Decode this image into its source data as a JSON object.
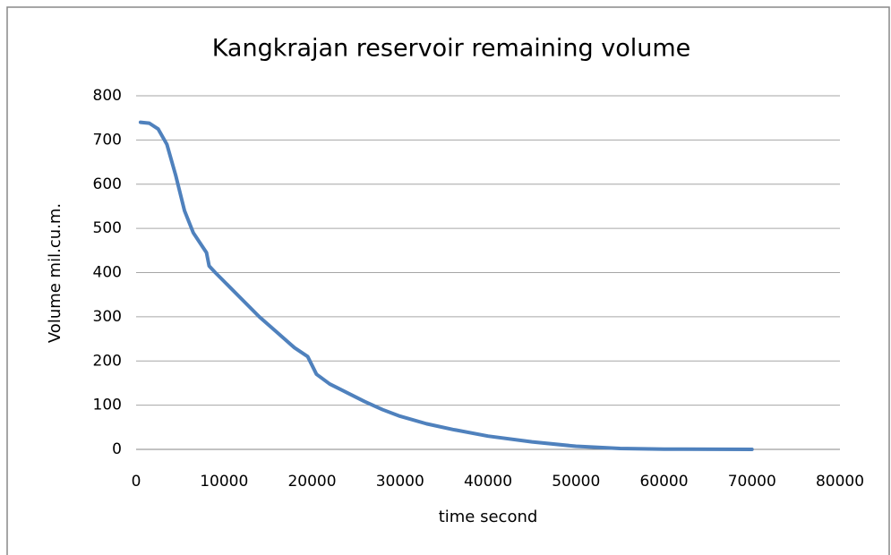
{
  "chart_data": {
    "type": "line",
    "title": "Kangkrajan reservoir remaining volume",
    "x_label": "time second",
    "y_label": "Volume mil.cu.m.",
    "x": [
      500,
      1500,
      2500,
      3500,
      4500,
      5500,
      6500,
      7500,
      8000,
      8300,
      9000,
      10000,
      12000,
      14000,
      16000,
      18000,
      19500,
      20500,
      22000,
      24000,
      26000,
      28000,
      30000,
      33000,
      36000,
      40000,
      45000,
      50000,
      55000,
      60000,
      70000
    ],
    "series": [
      {
        "name": "Volume",
        "color": "#4f81bd",
        "values": [
          740,
          738,
          725,
          690,
          620,
          540,
          490,
          460,
          445,
          415,
          400,
          380,
          340,
          300,
          265,
          230,
          210,
          170,
          148,
          128,
          108,
          90,
          75,
          58,
          45,
          30,
          17,
          7,
          2,
          0.5,
          0
        ]
      }
    ],
    "xlim": [
      0,
      80000
    ],
    "xticks": [
      0,
      10000,
      20000,
      30000,
      40000,
      50000,
      60000,
      70000,
      80000
    ],
    "ylim": [
      0,
      800
    ],
    "yticks": [
      0,
      100,
      200,
      300,
      400,
      500,
      600,
      700,
      800
    ],
    "grid": true
  }
}
